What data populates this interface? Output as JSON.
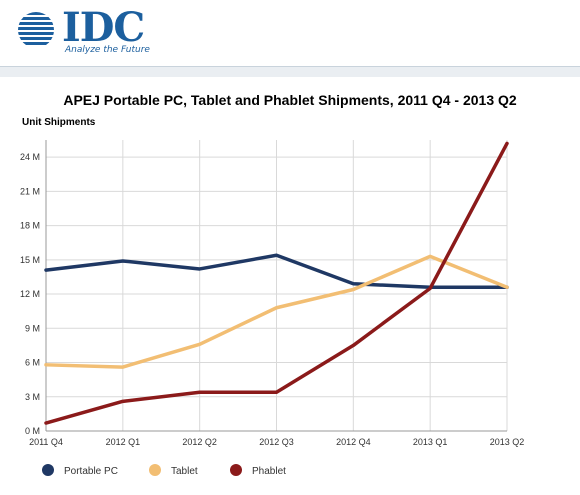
{
  "brand": {
    "name": "IDC",
    "tagline": "Analyze the Future",
    "color": "#1c5f9e"
  },
  "chart_data": {
    "type": "line",
    "title": "APEJ Portable PC, Tablet and Phablet Shipments, 2011 Q4 - 2013 Q2",
    "ylabel": "Unit Shipments",
    "xlabel": "",
    "categories": [
      "2011 Q4",
      "2012 Q1",
      "2012 Q2",
      "2012 Q3",
      "2012 Q4",
      "2013 Q1",
      "2013 Q2"
    ],
    "y_ticks": [
      0,
      3,
      6,
      9,
      12,
      15,
      18,
      21,
      24
    ],
    "y_tick_labels": [
      "0 M",
      "3 M",
      "6 M",
      "9 M",
      "12 M",
      "15 M",
      "18 M",
      "21 M",
      "24 M"
    ],
    "ylim": [
      0,
      25.5
    ],
    "unit": "M",
    "grid": true,
    "legend_position": "bottom",
    "series": [
      {
        "name": "Portable PC",
        "color": "#1f3864",
        "values": [
          14.1,
          14.9,
          14.2,
          15.4,
          12.9,
          12.6,
          12.6
        ]
      },
      {
        "name": "Tablet",
        "color": "#f2be73",
        "values": [
          5.8,
          5.6,
          7.6,
          10.8,
          12.4,
          15.3,
          12.6
        ]
      },
      {
        "name": "Phablet",
        "color": "#8b1a1a",
        "values": [
          0.7,
          2.6,
          3.4,
          3.4,
          7.5,
          12.5,
          25.2
        ]
      }
    ]
  }
}
